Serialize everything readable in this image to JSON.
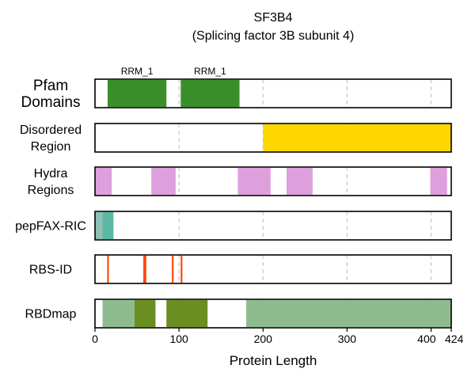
{
  "chart_data": {
    "type": "feature-track",
    "title": "SF3B4",
    "subtitle": "(Splicing factor 3B subunit 4)",
    "xlabel": "Protein Length",
    "xlim": [
      0,
      424
    ],
    "xticks": [
      0,
      100,
      200,
      300,
      400,
      424
    ],
    "grid_x": [
      100,
      200,
      300,
      400
    ],
    "tracks": [
      {
        "id": "pfam",
        "label": [
          "Pfam",
          "Domains"
        ],
        "segments": [
          {
            "start": 15,
            "end": 85,
            "color": "#3a8f2a",
            "label": "RRM_1"
          },
          {
            "start": 102,
            "end": 172,
            "color": "#3a8f2a",
            "label": "RRM_1"
          }
        ]
      },
      {
        "id": "disordered",
        "label": [
          "Disordered",
          "Region"
        ],
        "segments": [
          {
            "start": 200,
            "end": 424,
            "color": "#ffd700"
          }
        ]
      },
      {
        "id": "hydra",
        "label": [
          "Hydra",
          "Regions"
        ],
        "segments": [
          {
            "start": 0,
            "end": 20,
            "color": "#dda0dd"
          },
          {
            "start": 67,
            "end": 96,
            "color": "#dda0dd"
          },
          {
            "start": 170,
            "end": 209,
            "color": "#dda0dd"
          },
          {
            "start": 228,
            "end": 259,
            "color": "#dda0dd"
          },
          {
            "start": 399,
            "end": 419,
            "color": "#dda0dd"
          }
        ]
      },
      {
        "id": "pepfax",
        "label": [
          "pepFAX-RIC"
        ],
        "segments": [
          {
            "start": 0,
            "end": 9,
            "color": "#8fbfb5"
          },
          {
            "start": 9,
            "end": 22,
            "color": "#5cb8a4"
          }
        ]
      },
      {
        "id": "rbsid",
        "label": [
          "RBS-ID"
        ],
        "segments": [
          {
            "start": 14.5,
            "end": 16.5,
            "color": "#ff4500"
          },
          {
            "start": 57.5,
            "end": 61,
            "color": "#ff4500"
          },
          {
            "start": 91.5,
            "end": 93.5,
            "color": "#ff4500"
          },
          {
            "start": 102,
            "end": 104,
            "color": "#ff4500"
          }
        ]
      },
      {
        "id": "rbdmap",
        "label": [
          "RBDmap"
        ],
        "segments": [
          {
            "start": 9,
            "end": 47,
            "color": "#8fbc8f"
          },
          {
            "start": 47,
            "end": 72,
            "color": "#6b8e23"
          },
          {
            "start": 85,
            "end": 134,
            "color": "#6b8e23"
          },
          {
            "start": 180,
            "end": 424,
            "color": "#8fbc8f"
          }
        ]
      }
    ]
  }
}
